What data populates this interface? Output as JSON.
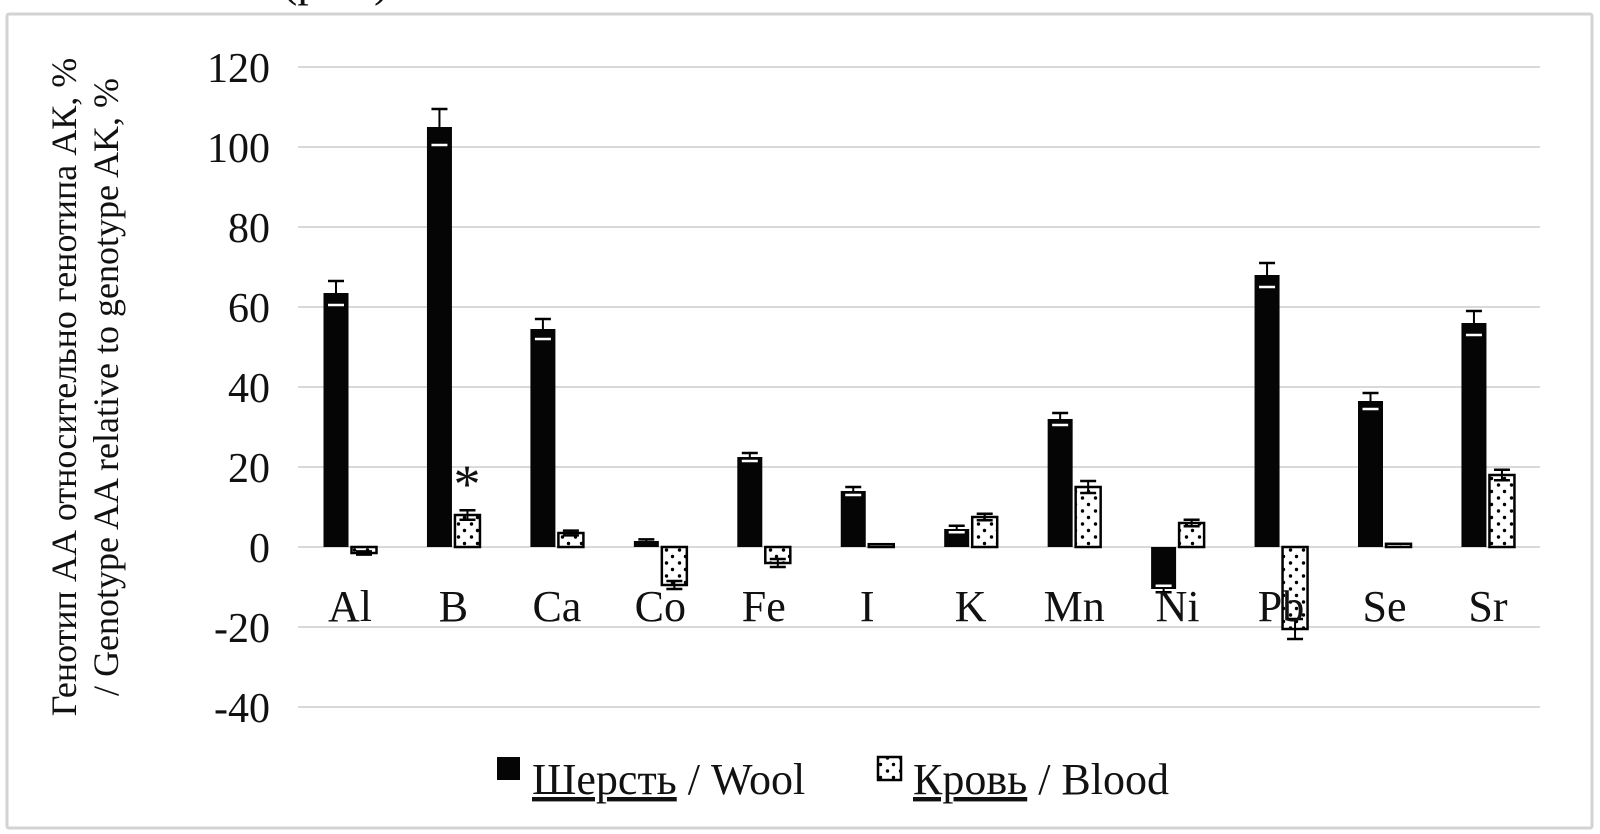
{
  "figure": {
    "background": "#ffffff",
    "frame_color": "#d3d3d3",
    "top_fragment_left": "(p",
    "top_fragment_right": ")",
    "text_color": "#111111"
  },
  "chart_data": {
    "type": "bar",
    "title": "",
    "categories": [
      "Al",
      "B",
      "Ca",
      "Co",
      "Fe",
      "I",
      "K",
      "Mn",
      "Ni",
      "Pb",
      "Se",
      "Sr"
    ],
    "series": [
      {
        "name": "Шерсть / Wool",
        "label_ru": "Шерсть",
        "label_rest": " / Wool",
        "style": "solid-black",
        "color": "#050505",
        "values": [
          63.5,
          105,
          54.5,
          1.5,
          22.5,
          14,
          4.5,
          32,
          -10.5,
          68,
          36.5,
          56
        ],
        "errors": [
          3,
          4.5,
          2.5,
          0.4,
          1,
          1,
          0.8,
          1.5,
          0.8,
          3,
          2,
          3
        ]
      },
      {
        "name": "Кровь / Blood",
        "label_ru": "Кровь",
        "label_rest": " / Blood",
        "style": "dotted-white",
        "color": "#ffffff",
        "values": [
          -1.5,
          8,
          3.5,
          -9.5,
          -4,
          0.7,
          7.5,
          15,
          6,
          -20.5,
          0.8,
          18
        ],
        "errors": [
          0.4,
          1.2,
          0.6,
          1,
          1,
          0.2,
          0.8,
          1.5,
          0.8,
          2.5,
          0.2,
          1.3
        ]
      }
    ],
    "ylabel_line1": "Генотип АА относительно генотипа АК, %",
    "ylabel_line2": "/ Genotype AA relative to genotype AK, %",
    "xlabel": "",
    "ylim": [
      -40,
      120
    ],
    "yticks": [
      120,
      100,
      80,
      60,
      40,
      20,
      0,
      -20,
      -40
    ],
    "grid": true,
    "gridline_color": "#d9d9d9",
    "legend_position": "bottom-center",
    "annotations": [
      {
        "text": "*",
        "category": "B",
        "series": "Кровь / Blood"
      }
    ]
  }
}
